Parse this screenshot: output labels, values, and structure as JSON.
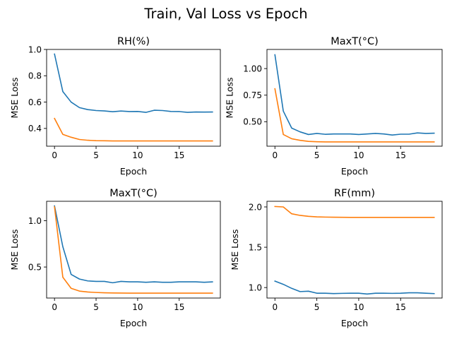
{
  "figure": {
    "title": "Train, Val Loss vs Epoch"
  },
  "chart_data": [
    {
      "type": "line",
      "title": "RH(%)",
      "xlabel": "Epoch",
      "ylabel": "MSE Loss",
      "xlim": [
        -0.95,
        19.95
      ],
      "ylim": [
        0.265,
        1.0
      ],
      "xticks": [
        0,
        5,
        10,
        15
      ],
      "xtick_labels": [
        "0",
        "5",
        "10",
        "15"
      ],
      "yticks": [
        0.4,
        0.6,
        0.8,
        1.0
      ],
      "ytick_labels": [
        "0.4",
        "0.6",
        "0.8",
        "1.0"
      ],
      "x": [
        0,
        1,
        2,
        3,
        4,
        5,
        6,
        7,
        8,
        9,
        10,
        11,
        12,
        13,
        14,
        15,
        16,
        17,
        18,
        19
      ],
      "series": [
        {
          "color": "#1f77b4",
          "values": [
            0.965,
            0.68,
            0.6,
            0.558,
            0.543,
            0.536,
            0.533,
            0.527,
            0.532,
            0.528,
            0.529,
            0.522,
            0.538,
            0.536,
            0.529,
            0.528,
            0.522,
            0.525,
            0.524,
            0.525
          ]
        },
        {
          "color": "#ff7f0e",
          "values": [
            0.476,
            0.355,
            0.333,
            0.316,
            0.31,
            0.307,
            0.306,
            0.305,
            0.305,
            0.305,
            0.305,
            0.305,
            0.305,
            0.305,
            0.305,
            0.305,
            0.305,
            0.305,
            0.305,
            0.305
          ]
        }
      ],
      "grid": false
    },
    {
      "type": "line",
      "title": "MaxT(°C)",
      "xlabel": "Epoch",
      "ylabel": "MSE Loss",
      "xlim": [
        -0.95,
        19.95
      ],
      "ylim": [
        0.27,
        1.18
      ],
      "xticks": [
        0,
        5,
        10,
        15
      ],
      "xtick_labels": [
        "0",
        "5",
        "10",
        "15"
      ],
      "yticks": [
        0.5,
        0.75,
        1.0
      ],
      "ytick_labels": [
        "0.50",
        "0.75",
        "1.00"
      ],
      "x": [
        0,
        1,
        2,
        3,
        4,
        5,
        6,
        7,
        8,
        9,
        10,
        11,
        12,
        13,
        14,
        15,
        16,
        17,
        18,
        19
      ],
      "series": [
        {
          "color": "#1f77b4",
          "values": [
            1.13,
            0.6,
            0.44,
            0.405,
            0.38,
            0.39,
            0.382,
            0.385,
            0.385,
            0.385,
            0.38,
            0.385,
            0.39,
            0.385,
            0.375,
            0.383,
            0.383,
            0.395,
            0.39,
            0.392
          ]
        },
        {
          "color": "#ff7f0e",
          "values": [
            0.81,
            0.38,
            0.34,
            0.325,
            0.315,
            0.312,
            0.31,
            0.31,
            0.31,
            0.31,
            0.31,
            0.31,
            0.31,
            0.31,
            0.31,
            0.31,
            0.31,
            0.31,
            0.31,
            0.31
          ]
        }
      ],
      "grid": false
    },
    {
      "type": "line",
      "title": "MaxT(°C)",
      "xlabel": "Epoch",
      "ylabel": "MSE Loss",
      "xlim": [
        -0.95,
        19.95
      ],
      "ylim": [
        0.165,
        1.21
      ],
      "xticks": [
        0,
        5,
        10,
        15
      ],
      "xtick_labels": [
        "0",
        "5",
        "10",
        "15"
      ],
      "yticks": [
        0.5,
        1.0
      ],
      "ytick_labels": [
        "0.5",
        "1.0"
      ],
      "x": [
        0,
        1,
        2,
        3,
        4,
        5,
        6,
        7,
        8,
        9,
        10,
        11,
        12,
        13,
        14,
        15,
        16,
        17,
        18,
        19
      ],
      "series": [
        {
          "color": "#1f77b4",
          "values": [
            1.16,
            0.72,
            0.42,
            0.37,
            0.35,
            0.345,
            0.345,
            0.33,
            0.345,
            0.34,
            0.34,
            0.335,
            0.34,
            0.335,
            0.335,
            0.34,
            0.34,
            0.34,
            0.335,
            0.34
          ]
        },
        {
          "color": "#ff7f0e",
          "values": [
            1.15,
            0.39,
            0.27,
            0.24,
            0.23,
            0.225,
            0.222,
            0.22,
            0.219,
            0.218,
            0.218,
            0.218,
            0.218,
            0.218,
            0.218,
            0.218,
            0.218,
            0.218,
            0.218,
            0.218
          ]
        }
      ],
      "grid": false
    },
    {
      "type": "line",
      "title": "RF(mm)",
      "xlabel": "Epoch",
      "ylabel": "MSE Loss",
      "xlim": [
        -0.95,
        19.95
      ],
      "ylim": [
        0.87,
        2.07
      ],
      "xticks": [
        0,
        5,
        10,
        15
      ],
      "xtick_labels": [
        "0",
        "5",
        "10",
        "15"
      ],
      "yticks": [
        1.0,
        1.5,
        2.0
      ],
      "ytick_labels": [
        "1.0",
        "1.5",
        "2.0"
      ],
      "x": [
        0,
        1,
        2,
        3,
        4,
        5,
        6,
        7,
        8,
        9,
        10,
        11,
        12,
        13,
        14,
        15,
        16,
        17,
        18,
        19
      ],
      "series": [
        {
          "color": "#1f77b4",
          "values": [
            1.08,
            1.04,
            0.99,
            0.95,
            0.955,
            0.93,
            0.93,
            0.925,
            0.928,
            0.93,
            0.93,
            0.92,
            0.93,
            0.93,
            0.928,
            0.93,
            0.935,
            0.935,
            0.93,
            0.925
          ]
        },
        {
          "color": "#ff7f0e",
          "values": [
            2.005,
            2.0,
            1.915,
            1.895,
            1.883,
            1.877,
            1.874,
            1.872,
            1.871,
            1.87,
            1.87,
            1.87,
            1.87,
            1.87,
            1.87,
            1.87,
            1.87,
            1.87,
            1.87,
            1.87
          ]
        }
      ],
      "grid": false
    }
  ]
}
